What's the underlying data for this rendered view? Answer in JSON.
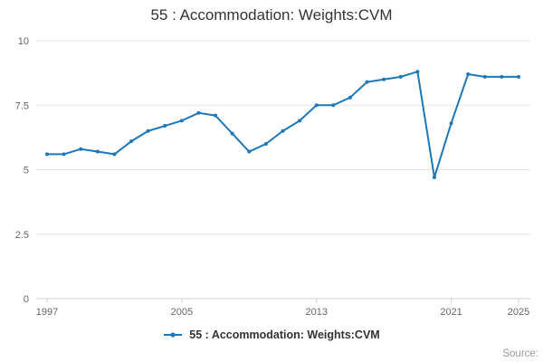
{
  "title": "55 : Accommodation: Weights:CVM",
  "legend": {
    "label": "55 : Accommodation: Weights:CVM"
  },
  "source": "Source:",
  "colors": {
    "line": "#1d77b8",
    "grid": "#e6e6e6",
    "axis": "#ccd1d6",
    "tick_text": "#666666",
    "title_text": "#333333",
    "source_text": "#999999"
  },
  "chart_data": {
    "type": "line",
    "title": "55 : Accommodation: Weights:CVM",
    "xlabel": "",
    "ylabel": "",
    "x": [
      1997,
      1998,
      1999,
      2000,
      2001,
      2002,
      2003,
      2004,
      2005,
      2006,
      2007,
      2008,
      2009,
      2010,
      2011,
      2012,
      2013,
      2014,
      2015,
      2016,
      2017,
      2018,
      2019,
      2020,
      2021,
      2022,
      2023,
      2024,
      2025
    ],
    "series": [
      {
        "name": "55 : Accommodation: Weights:CVM",
        "values": [
          5.6,
          5.6,
          5.8,
          5.7,
          5.6,
          6.1,
          6.5,
          6.7,
          6.9,
          7.2,
          7.1,
          6.4,
          5.7,
          6.0,
          6.5,
          6.9,
          7.5,
          7.5,
          7.8,
          8.4,
          8.5,
          8.6,
          8.8,
          4.7,
          6.8,
          8.7,
          8.6,
          8.6,
          8.6
        ]
      }
    ],
    "xlim": [
      1997,
      2025
    ],
    "ylim": [
      0,
      10
    ],
    "y_ticks": [
      0,
      2.5,
      5,
      7.5,
      10
    ],
    "x_ticks": [
      1997,
      2005,
      2013,
      2021,
      2025
    ],
    "grid": "horizontal",
    "legend_position": "bottom",
    "marker": "small-circle"
  }
}
